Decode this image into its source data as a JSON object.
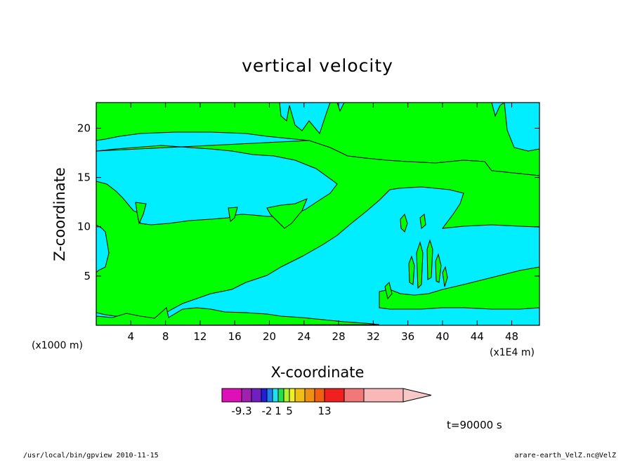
{
  "chart_data": {
    "type": "contour",
    "title": "vertical velocity",
    "xlabel": "X-coordinate",
    "ylabel": "Z-coordinate",
    "x_unit": "(x1E4 m)",
    "y_unit": "(x1000 m)",
    "x_ticks": [
      4,
      8,
      12,
      16,
      20,
      24,
      28,
      32,
      36,
      40,
      44,
      48
    ],
    "y_ticks": [
      5,
      10,
      15,
      20
    ],
    "xlim": [
      0,
      51.2
    ],
    "ylim": [
      0,
      22.6
    ],
    "colorbar": {
      "colors": [
        "#e010b8",
        "#a020b0",
        "#7020c0",
        "#2020d8",
        "#2080f0",
        "#20e0f0",
        "#20e050",
        "#b0f030",
        "#f0f020",
        "#f0c010",
        "#f09010",
        "#f06010",
        "#f02020",
        "#f07878",
        "#f8b8b8",
        "#f8c8c8"
      ],
      "labels": [
        {
          "text": "-9.3",
          "index": 1
        },
        {
          "text": "-2",
          "index": 4
        },
        {
          "text": "1",
          "index": 6
        },
        {
          "text": "5",
          "index": 8
        },
        {
          "text": "13",
          "index": 12
        }
      ]
    },
    "fill_colors": {
      "positive": "#00ff00",
      "negative": "#00eeff"
    },
    "time_label": "t=90000 s"
  },
  "footer": {
    "left": "/usr/local/bin/gpview  2010-11-15",
    "right": "arare-earth_VelZ.nc@VelZ"
  }
}
